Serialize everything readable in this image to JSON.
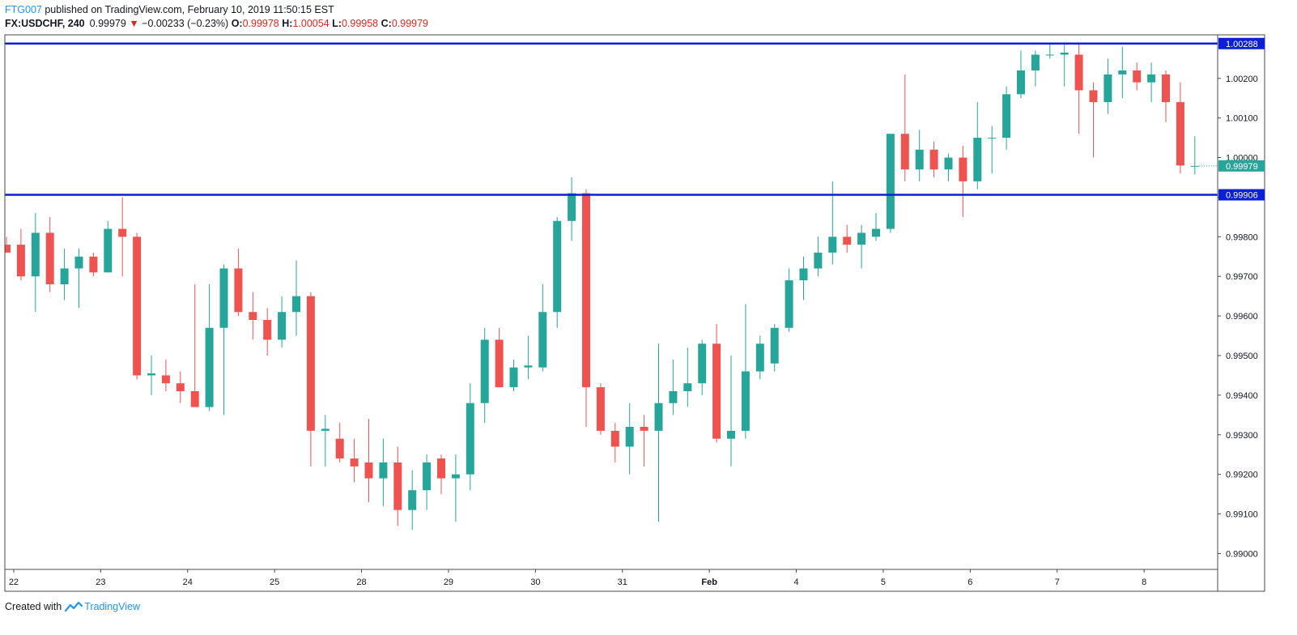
{
  "header": {
    "author": "FTG007",
    "published_text": " published on TradingView.com, February 10, 2019 11:50:15 EST",
    "symbol": "FX:USDCHF, 240",
    "last": "0.99979",
    "change_arrow": "▼",
    "change": "−0.00233 (−0.23%)",
    "open_label": "O:",
    "open": "0.99978",
    "high_label": "H:",
    "high": "1.00054",
    "low_label": "L:",
    "low": "0.99958",
    "close_label": "C:",
    "close": "0.99979"
  },
  "footer": {
    "created_with": "Created with",
    "brand": "TradingView"
  },
  "colors": {
    "up": "#26a69a",
    "down": "#ef5350",
    "hline": "#0b1fd6",
    "axis_text": "#131722",
    "border": "#4a4a4a"
  },
  "chart_data": {
    "type": "candlestick",
    "symbol": "FX:USDCHF",
    "interval": "240",
    "ylim": [
      0.9896,
      1.0031
    ],
    "y_ticks": [
      "0.99000",
      "0.99100",
      "0.99200",
      "0.99300",
      "0.99400",
      "0.99500",
      "0.99600",
      "0.99700",
      "0.99800",
      "0.99900",
      "1.00000",
      "1.00100",
      "1.00200"
    ],
    "x_ticks": [
      {
        "label": "22",
        "index": 0.5
      },
      {
        "label": "23",
        "index": 6.5
      },
      {
        "label": "24",
        "index": 12.5
      },
      {
        "label": "25",
        "index": 18.5
      },
      {
        "label": "28",
        "index": 24.5
      },
      {
        "label": "29",
        "index": 30.5
      },
      {
        "label": "30",
        "index": 36.5
      },
      {
        "label": "31",
        "index": 42.5
      },
      {
        "label": "Feb",
        "index": 48.5
      },
      {
        "label": "4",
        "index": 54.5
      },
      {
        "label": "5",
        "index": 60.5
      },
      {
        "label": "6",
        "index": 66.5
      },
      {
        "label": "7",
        "index": 72.5
      },
      {
        "label": "8",
        "index": 78.5
      }
    ],
    "horizontal_lines": [
      {
        "value": 1.00288,
        "label": "1.00288"
      },
      {
        "value": 0.99906,
        "label": "0.99906"
      }
    ],
    "last_price": {
      "value": 0.99979,
      "label": "0.99979"
    },
    "candles": [
      {
        "o": 0.9978,
        "h": 0.998,
        "l": 0.9976,
        "c": 0.9976
      },
      {
        "o": 0.9978,
        "h": 0.9982,
        "l": 0.9969,
        "c": 0.997
      },
      {
        "o": 0.997,
        "h": 0.9986,
        "l": 0.9961,
        "c": 0.9981
      },
      {
        "o": 0.9981,
        "h": 0.9985,
        "l": 0.9966,
        "c": 0.9968
      },
      {
        "o": 0.9968,
        "h": 0.9977,
        "l": 0.9964,
        "c": 0.9972
      },
      {
        "o": 0.9972,
        "h": 0.9977,
        "l": 0.9962,
        "c": 0.9975
      },
      {
        "o": 0.9975,
        "h": 0.9976,
        "l": 0.997,
        "c": 0.9971
      },
      {
        "o": 0.9971,
        "h": 0.9984,
        "l": 0.9971,
        "c": 0.9982
      },
      {
        "o": 0.9982,
        "h": 0.999,
        "l": 0.997,
        "c": 0.998
      },
      {
        "o": 0.998,
        "h": 0.9981,
        "l": 0.9944,
        "c": 0.9945
      },
      {
        "o": 0.9945,
        "h": 0.995,
        "l": 0.994,
        "c": 0.99455
      },
      {
        "o": 0.9945,
        "h": 0.9949,
        "l": 0.9941,
        "c": 0.9943
      },
      {
        "o": 0.9943,
        "h": 0.9946,
        "l": 0.9938,
        "c": 0.9941
      },
      {
        "o": 0.9941,
        "h": 0.9968,
        "l": 0.9937,
        "c": 0.9937
      },
      {
        "o": 0.9937,
        "h": 0.9968,
        "l": 0.9936,
        "c": 0.9957
      },
      {
        "o": 0.9957,
        "h": 0.9973,
        "l": 0.9935,
        "c": 0.9972
      },
      {
        "o": 0.9972,
        "h": 0.9977,
        "l": 0.996,
        "c": 0.9961
      },
      {
        "o": 0.9961,
        "h": 0.9966,
        "l": 0.9954,
        "c": 0.9959
      },
      {
        "o": 0.9959,
        "h": 0.9962,
        "l": 0.995,
        "c": 0.9954
      },
      {
        "o": 0.9954,
        "h": 0.9965,
        "l": 0.9952,
        "c": 0.9961
      },
      {
        "o": 0.9961,
        "h": 0.9974,
        "l": 0.9955,
        "c": 0.9965
      },
      {
        "o": 0.9965,
        "h": 0.9966,
        "l": 0.9922,
        "c": 0.9931
      },
      {
        "o": 0.9931,
        "h": 0.9935,
        "l": 0.9922,
        "c": 0.99315
      },
      {
        "o": 0.9929,
        "h": 0.9933,
        "l": 0.9923,
        "c": 0.9924
      },
      {
        "o": 0.9924,
        "h": 0.9929,
        "l": 0.9918,
        "c": 0.9922
      },
      {
        "o": 0.9923,
        "h": 0.9934,
        "l": 0.9913,
        "c": 0.9919
      },
      {
        "o": 0.9919,
        "h": 0.9929,
        "l": 0.9912,
        "c": 0.9923
      },
      {
        "o": 0.9923,
        "h": 0.9927,
        "l": 0.9907,
        "c": 0.9911
      },
      {
        "o": 0.9911,
        "h": 0.9921,
        "l": 0.9906,
        "c": 0.9916
      },
      {
        "o": 0.9916,
        "h": 0.9925,
        "l": 0.9911,
        "c": 0.9923
      },
      {
        "o": 0.9924,
        "h": 0.9925,
        "l": 0.9915,
        "c": 0.9919
      },
      {
        "o": 0.9919,
        "h": 0.9925,
        "l": 0.9908,
        "c": 0.992
      },
      {
        "o": 0.992,
        "h": 0.9943,
        "l": 0.9916,
        "c": 0.9938
      },
      {
        "o": 0.9938,
        "h": 0.9957,
        "l": 0.9933,
        "c": 0.9954
      },
      {
        "o": 0.9954,
        "h": 0.9957,
        "l": 0.9942,
        "c": 0.9942
      },
      {
        "o": 0.9942,
        "h": 0.9949,
        "l": 0.9941,
        "c": 0.9947
      },
      {
        "o": 0.9947,
        "h": 0.9955,
        "l": 0.9944,
        "c": 0.99475
      },
      {
        "o": 0.9947,
        "h": 0.9968,
        "l": 0.9946,
        "c": 0.9961
      },
      {
        "o": 0.9961,
        "h": 0.9985,
        "l": 0.9957,
        "c": 0.9984
      },
      {
        "o": 0.9984,
        "h": 0.9995,
        "l": 0.9979,
        "c": 0.9991
      },
      {
        "o": 0.9991,
        "h": 0.9992,
        "l": 0.9932,
        "c": 0.9942
      },
      {
        "o": 0.9942,
        "h": 0.9943,
        "l": 0.993,
        "c": 0.9931
      },
      {
        "o": 0.9931,
        "h": 0.9933,
        "l": 0.9923,
        "c": 0.9927
      },
      {
        "o": 0.9927,
        "h": 0.9938,
        "l": 0.992,
        "c": 0.9932
      },
      {
        "o": 0.9932,
        "h": 0.9935,
        "l": 0.9922,
        "c": 0.9931
      },
      {
        "o": 0.9931,
        "h": 0.9953,
        "l": 0.9908,
        "c": 0.9938
      },
      {
        "o": 0.9938,
        "h": 0.9949,
        "l": 0.9935,
        "c": 0.9941
      },
      {
        "o": 0.9941,
        "h": 0.9952,
        "l": 0.9937,
        "c": 0.9943
      },
      {
        "o": 0.9943,
        "h": 0.9954,
        "l": 0.994,
        "c": 0.9953
      },
      {
        "o": 0.9953,
        "h": 0.9958,
        "l": 0.9928,
        "c": 0.9929
      },
      {
        "o": 0.9929,
        "h": 0.995,
        "l": 0.9922,
        "c": 0.9931
      },
      {
        "o": 0.9931,
        "h": 0.9963,
        "l": 0.9929,
        "c": 0.9946
      },
      {
        "o": 0.9946,
        "h": 0.9955,
        "l": 0.9944,
        "c": 0.9953
      },
      {
        "o": 0.9948,
        "h": 0.9958,
        "l": 0.9946,
        "c": 0.9957
      },
      {
        "o": 0.9957,
        "h": 0.9972,
        "l": 0.9956,
        "c": 0.9969
      },
      {
        "o": 0.9969,
        "h": 0.9975,
        "l": 0.9964,
        "c": 0.9972
      },
      {
        "o": 0.9972,
        "h": 0.998,
        "l": 0.997,
        "c": 0.9976
      },
      {
        "o": 0.9976,
        "h": 0.9994,
        "l": 0.9973,
        "c": 0.998
      },
      {
        "o": 0.998,
        "h": 0.9983,
        "l": 0.9976,
        "c": 0.9978
      },
      {
        "o": 0.9978,
        "h": 0.9983,
        "l": 0.9972,
        "c": 0.9981
      },
      {
        "o": 0.998,
        "h": 0.9986,
        "l": 0.9979,
        "c": 0.9982
      },
      {
        "o": 0.9982,
        "h": 1.0006,
        "l": 0.9981,
        "c": 1.0006
      },
      {
        "o": 1.0006,
        "h": 1.0021,
        "l": 0.9994,
        "c": 0.9997
      },
      {
        "o": 0.9997,
        "h": 1.0007,
        "l": 0.9994,
        "c": 1.0002
      },
      {
        "o": 1.0002,
        "h": 1.0004,
        "l": 0.9995,
        "c": 0.9997
      },
      {
        "o": 0.9997,
        "h": 1.0001,
        "l": 0.9994,
        "c": 1.0
      },
      {
        "o": 1.0,
        "h": 1.0003,
        "l": 0.9985,
        "c": 0.9994
      },
      {
        "o": 0.9994,
        "h": 1.0014,
        "l": 0.9992,
        "c": 1.0005
      },
      {
        "o": 1.0005,
        "h": 1.0008,
        "l": 0.9996,
        "c": 1.0005
      },
      {
        "o": 1.0005,
        "h": 1.0018,
        "l": 1.0002,
        "c": 1.0016
      },
      {
        "o": 1.0016,
        "h": 1.0027,
        "l": 1.0015,
        "c": 1.0022
      },
      {
        "o": 1.0022,
        "h": 1.0027,
        "l": 1.0018,
        "c": 1.0026
      },
      {
        "o": 1.0026,
        "h": 1.0029,
        "l": 1.0025,
        "c": 1.0026
      },
      {
        "o": 1.0026,
        "h": 1.0029,
        "l": 1.0018,
        "c": 1.00265
      },
      {
        "o": 1.0026,
        "h": 1.0029,
        "l": 1.0006,
        "c": 1.0017
      },
      {
        "o": 1.0017,
        "h": 1.0019,
        "l": 1.0,
        "c": 1.0014
      },
      {
        "o": 1.0014,
        "h": 1.0025,
        "l": 1.0011,
        "c": 1.0021
      },
      {
        "o": 1.0021,
        "h": 1.0028,
        "l": 1.0015,
        "c": 1.0022
      },
      {
        "o": 1.0022,
        "h": 1.0024,
        "l": 1.0017,
        "c": 1.0019
      },
      {
        "o": 1.0019,
        "h": 1.0024,
        "l": 1.0014,
        "c": 1.0021
      },
      {
        "o": 1.0021,
        "h": 1.0022,
        "l": 1.0009,
        "c": 1.0014
      },
      {
        "o": 1.0014,
        "h": 1.0019,
        "l": 0.9996,
        "c": 0.9998
      },
      {
        "o": 0.99978,
        "h": 1.00054,
        "l": 0.99958,
        "c": 0.99979
      }
    ]
  }
}
